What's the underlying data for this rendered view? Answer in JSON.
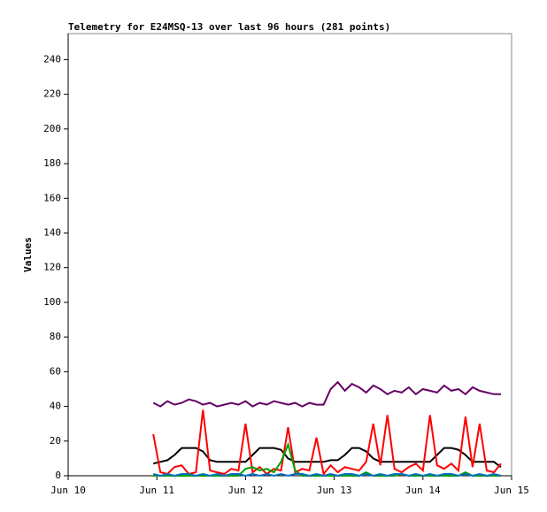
{
  "chart_data": {
    "type": "line",
    "title": "Telemetry for E24MSQ-13 over last 96 hours (281 points)",
    "y_label": "Values",
    "x": [
      10.96,
      11.04,
      11.12,
      11.2,
      11.28,
      11.36,
      11.44,
      11.52,
      11.6,
      11.68,
      11.76,
      11.84,
      11.92,
      12.0,
      12.08,
      12.16,
      12.24,
      12.32,
      12.4,
      12.48,
      12.56,
      12.64,
      12.72,
      12.8,
      12.88,
      12.96,
      13.04,
      13.12,
      13.2,
      13.28,
      13.36,
      13.44,
      13.52,
      13.6,
      13.68,
      13.76,
      13.84,
      13.92,
      14.0,
      14.08,
      14.16,
      14.24,
      14.32,
      14.4,
      14.48,
      14.56,
      14.64,
      14.72,
      14.8,
      14.88
    ],
    "series": [
      {
        "color": "#660066",
        "values": [
          42,
          40,
          43,
          41,
          42,
          44,
          43,
          41,
          42,
          40,
          41,
          42,
          41,
          43,
          40,
          42,
          41,
          43,
          42,
          41,
          42,
          40,
          42,
          41,
          41,
          50,
          54,
          49,
          53,
          51,
          48,
          52,
          50,
          47,
          49,
          48,
          51,
          47,
          50,
          49,
          48,
          52,
          49,
          50,
          47,
          51,
          49,
          48,
          47,
          47
        ]
      },
      {
        "color": "#000000",
        "values": [
          7,
          8,
          9,
          12,
          16,
          16,
          16,
          14,
          9,
          8,
          8,
          8,
          8,
          8,
          12,
          16,
          16,
          16,
          15,
          10,
          8,
          8,
          8,
          8,
          8,
          9,
          9,
          12,
          16,
          16,
          14,
          10,
          8,
          8,
          8,
          8,
          8,
          8,
          8,
          8,
          12,
          16,
          16,
          15,
          12,
          8,
          8,
          8,
          8,
          5
        ]
      },
      {
        "color": "#ff0000",
        "values": [
          24,
          2,
          1,
          5,
          6,
          1,
          2,
          38,
          3,
          2,
          1,
          4,
          3,
          30,
          2,
          5,
          1,
          4,
          3,
          28,
          2,
          4,
          3,
          22,
          1,
          6,
          2,
          5,
          4,
          3,
          8,
          30,
          6,
          35,
          4,
          2,
          5,
          7,
          3,
          35,
          6,
          4,
          7,
          3,
          34,
          5,
          30,
          3,
          2,
          7
        ]
      },
      {
        "color": "#00a000",
        "values": [
          0,
          0,
          0,
          0,
          0,
          0,
          0,
          0,
          0,
          0,
          0,
          0,
          0,
          4,
          5,
          3,
          4,
          2,
          8,
          18,
          3,
          0,
          0,
          0,
          0,
          0,
          0,
          0,
          0,
          0,
          2,
          0,
          0,
          0,
          0,
          1,
          0,
          0,
          0,
          0,
          0,
          0,
          0,
          0,
          2,
          0,
          0,
          0,
          0,
          0
        ]
      },
      {
        "color": "#0070c0",
        "values": [
          1,
          0,
          1,
          0,
          1,
          1,
          0,
          1,
          0,
          1,
          0,
          1,
          1,
          0,
          1,
          0,
          1,
          0,
          1,
          0,
          1,
          1,
          0,
          1,
          0,
          1,
          0,
          1,
          1,
          0,
          1,
          0,
          1,
          0,
          1,
          1,
          0,
          1,
          0,
          1,
          0,
          1,
          1,
          0,
          1,
          0,
          1,
          0,
          1,
          0
        ]
      }
    ],
    "xlim": [
      10,
      15
    ],
    "xticks": [
      {
        "value": 10,
        "label": "Jun 10"
      },
      {
        "value": 11,
        "label": "Jun 11"
      },
      {
        "value": 12,
        "label": "Jun 12"
      },
      {
        "value": 13,
        "label": "Jun 13"
      },
      {
        "value": 14,
        "label": "Jun 14"
      },
      {
        "value": 15,
        "label": "Jun 15"
      }
    ],
    "ylim": [
      0,
      255
    ],
    "yticks": [
      0,
      20,
      40,
      60,
      80,
      100,
      120,
      140,
      160,
      180,
      200,
      220,
      240
    ],
    "grid": false
  }
}
